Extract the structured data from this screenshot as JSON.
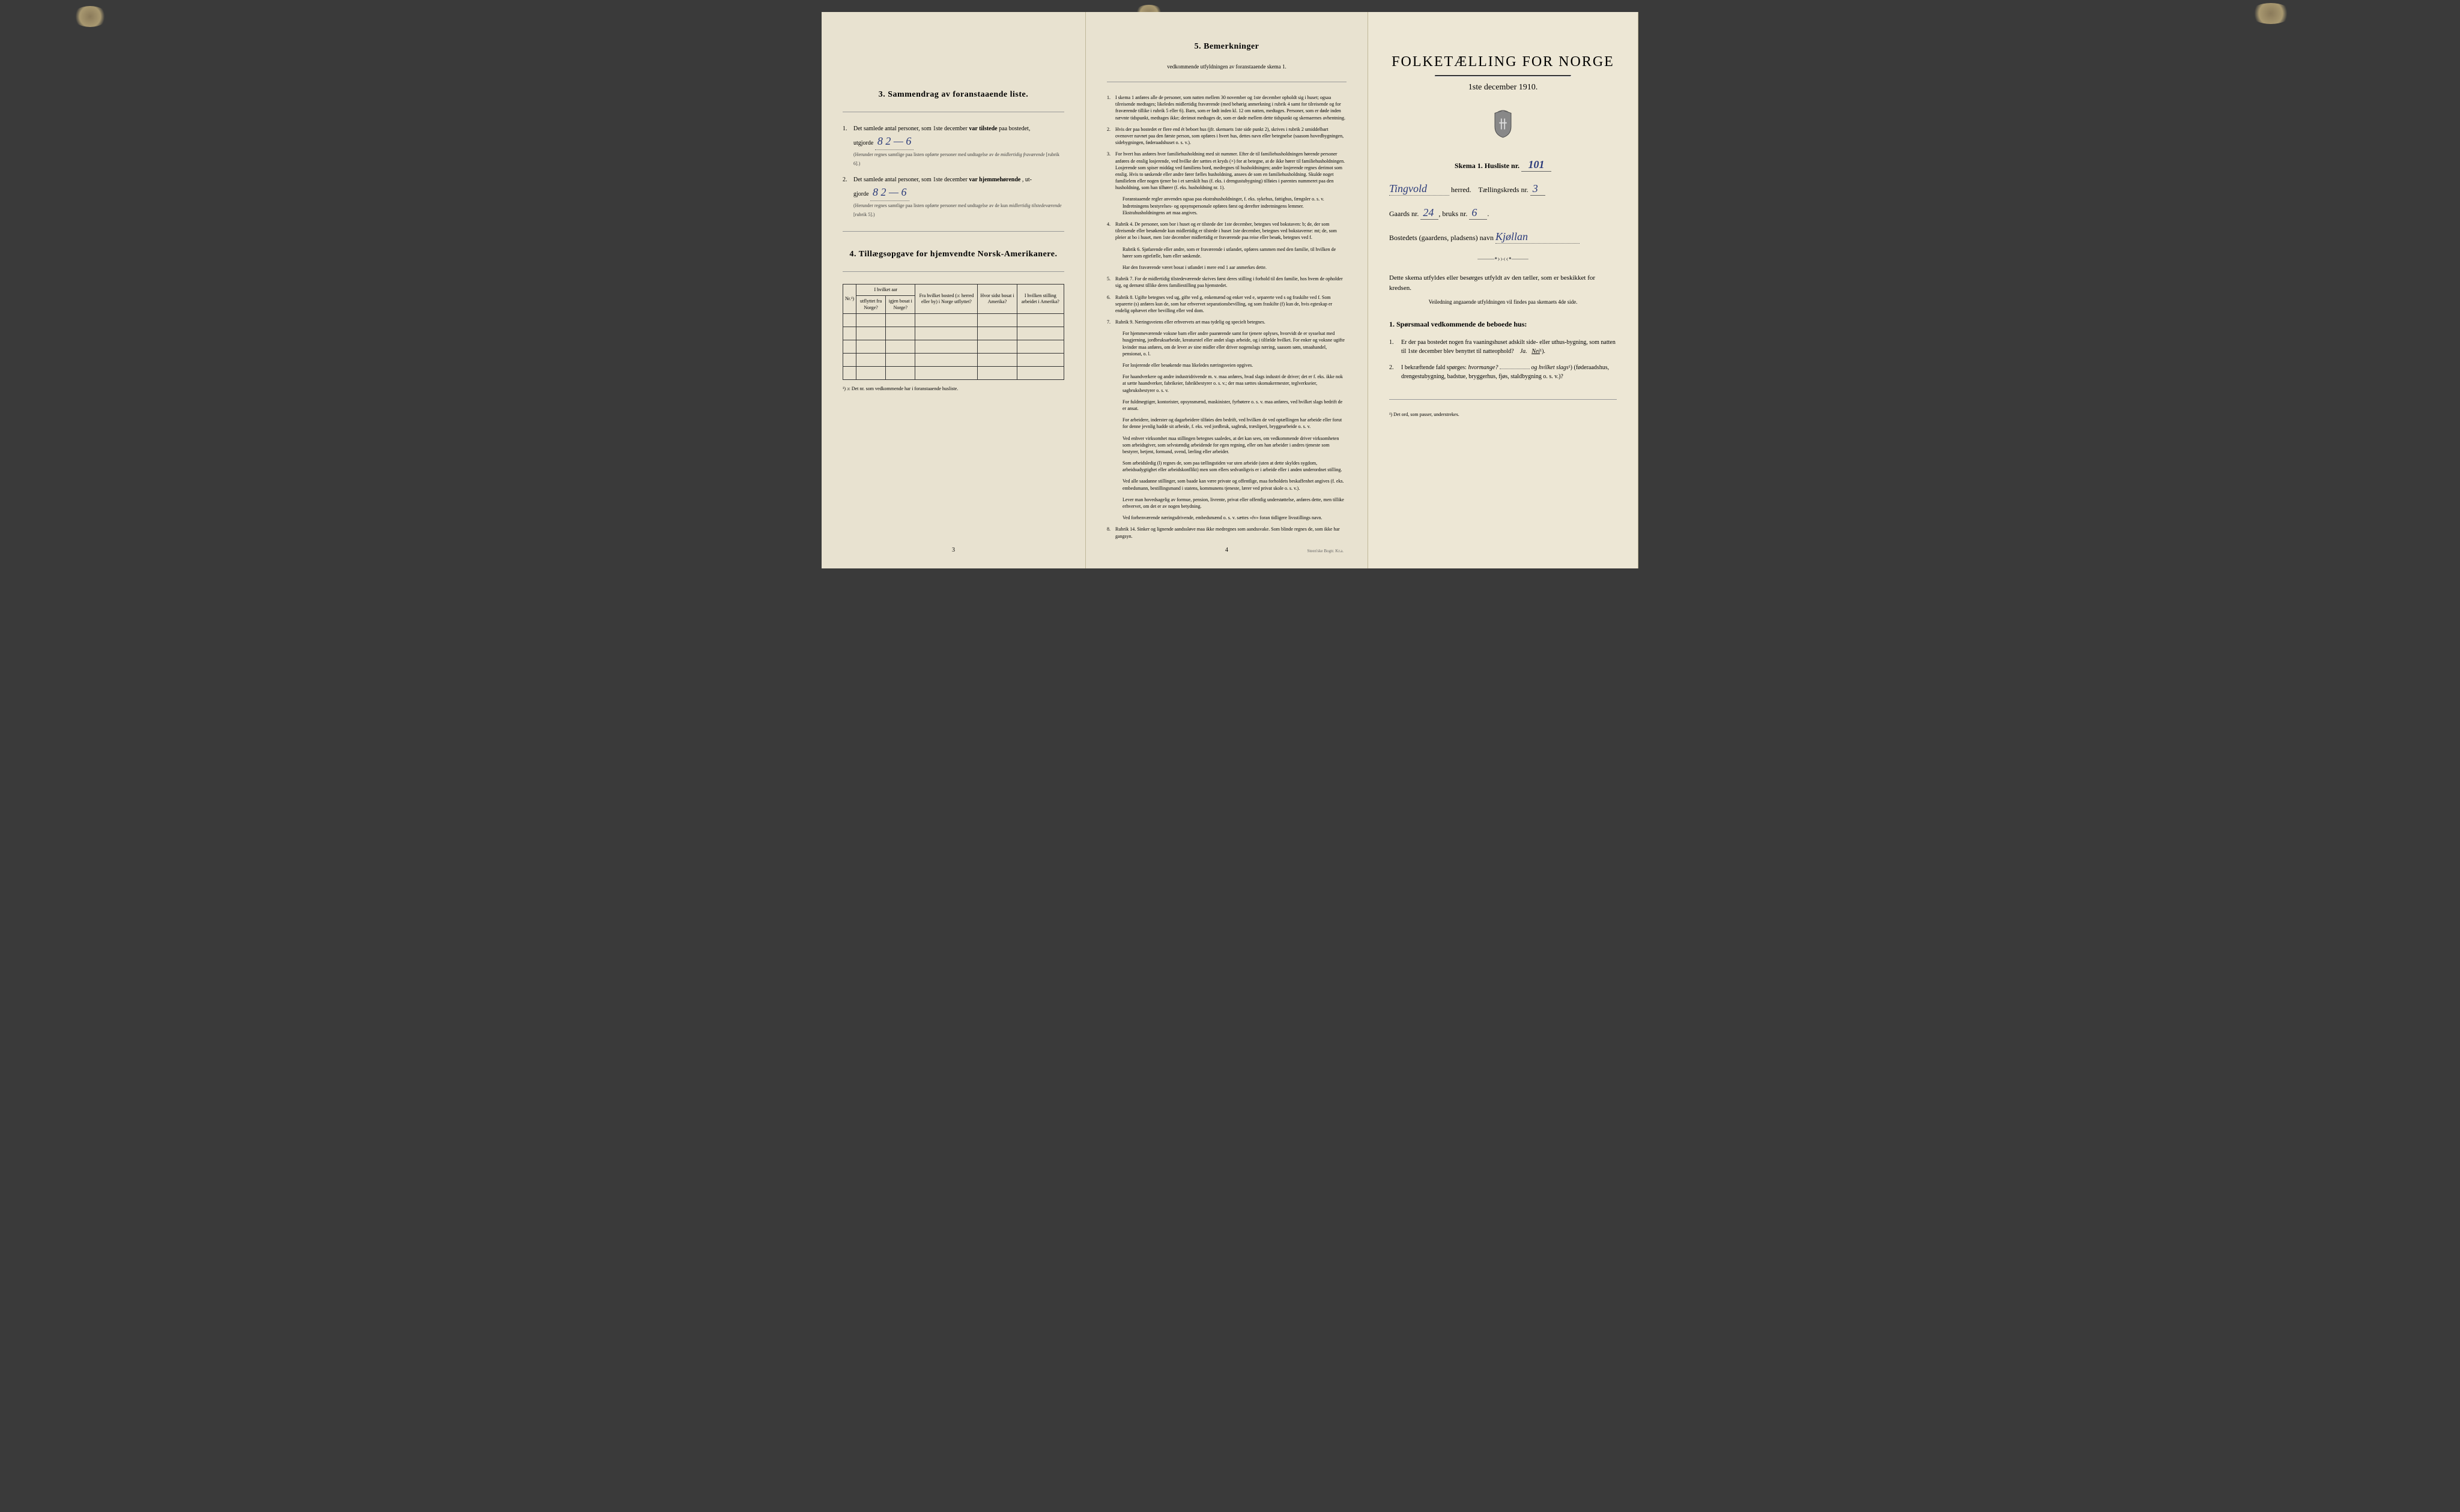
{
  "page_left": {
    "section3": {
      "title": "3. Sammendrag av foranstaaende liste.",
      "item1": {
        "num": "1.",
        "text_start": "Det samlede antal personer, som 1ste december",
        "text_bold": "var tilstede",
        "text_end": "paa bostedet,",
        "line2_start": "utgjorde",
        "handwritten": "8  2 — 6",
        "note": "(Herunder regnes samtlige paa listen opførte personer med undtagelse av de",
        "note_italic": "midlertidig fraværende",
        "note_end": "[rubrik 6].)"
      },
      "item2": {
        "num": "2.",
        "text_start": "Det samlede antal personer, som 1ste december",
        "text_bold": "var hjemmehørende",
        "text_end": ", ut-",
        "line2_start": "gjorde",
        "handwritten": "8  2 — 6",
        "note": "(Herunder regnes samtlige paa listen opførte personer med undtagelse av de kun",
        "note_italic": "midlertidig tilstedeværende",
        "note_end": "[rubrik 5].)"
      }
    },
    "section4": {
      "title": "4. Tillægsopgave for hjemvendte Norsk-Amerikanere.",
      "headers": {
        "col1": "Nr.¹)",
        "col2_top": "I hvilket aar",
        "col2a": "utflyttet fra Norge?",
        "col2b": "igjen bosat i Norge?",
        "col3": "Fra hvilket bosted (ɔ: herred eller by) i Norge utflyttet?",
        "col4": "Hvor sidst bosat i Amerika?",
        "col5": "I hvilken stilling arbeidet i Amerika?"
      },
      "footnote": "¹) ɔ: Det nr. som vedkommende har i foranstaaende husliste."
    },
    "page_num": "3"
  },
  "page_center": {
    "section5": {
      "title": "5. Bemerkninger",
      "subtitle": "vedkommende utfyldningen av foranstaaende skema 1."
    },
    "remarks": [
      {
        "num": "1.",
        "text": "I skema 1 anføres alle de personer, som natten mellem 30 november og 1ste december opholdt sig i huset; ogsaa tilreisende medtages; likeledes midlertidig fraværende (med behørig anmerkning i rubrik 4 samt for tilreisende og for fraværende tillike i rubrik 5 eller 6). Barn, som er født inden kl. 12 om natten, medtages. Personer, som er døde inden nævnte tidspunkt, medtages ikke; derimot medtages de, som er døde mellem dette tidspunkt og skemaernes avhentning."
      },
      {
        "num": "2.",
        "text": "Hvis der paa bostedet er flere end ét beboet hus (jfr. skemaets 1ste side punkt 2), skrives i rubrik 2 umiddelbart ovenover navnet paa den første person, som opføres i hvert hus, dettes navn eller betegnelse (saasom hovedbygningen, sidebygningen, føderaadshuset o. s. v.)."
      },
      {
        "num": "3.",
        "text": "For hvert hus anføres hver familiehusholdning med sit nummer. Efter de til familiehusholdningen hørende personer anføres de enslig losjerende, ved hvilke der sættes et kryds (×) for at betegne, at de ikke hører til familiehusholdningen. Losjerende som spiser middag ved familiens bord, medregnes til husholdningen; andre losjerende regnes derimot som enslig. Hvis to søskende eller andre fører fælles husholdning, ansees de som en familiehusholdning. Skulde noget familielem eller nogen tjener bo i et særskilt hus (f. eks. i drengustubygning) tilføies i parentes nummeret paa den husholdning, som han tilhører (f. eks. husholdning nr. 1)."
      },
      {
        "num": "",
        "text": "Foranstaaende regler anvendes ogsaa paa ekstrahusholdninger, f. eks. sykehus, fattighus, fængsler o. s. v. Indretningens bestyrelses- og opsynspersonale opføres først og derefter indretningens lemmer. Ekstrahusholdningens art maa angives."
      },
      {
        "num": "4.",
        "text": "Rubrik 4. De personer, som bor i huset og er tilstede der 1ste december, betegnes ved bokstaven: b; de, der som tilreisende eller besøkende kun midlertidig er tilstede i huset 1ste december, betegnes ved bokstaverne: mt; de, som pleier at bo i huset, men 1ste december midlertidig er fraværende paa reise eller besøk, betegnes ved f."
      },
      {
        "num": "",
        "text": "Rubrik 6. Sjøfarende eller andre, som er fraværende i utlandet, opføres sammen med den familie, til hvilken de hører som egtefælle, barn eller søskende."
      },
      {
        "num": "",
        "text": "Har den fraværende været bosat i utlandet i mere end 1 aar anmerkes dette."
      },
      {
        "num": "5.",
        "text": "Rubrik 7. For de midlertidig tilstedeværende skrives først deres stilling i forhold til den familie, hos hvem de opholder sig, og dernæst tillike deres familiestilling paa hjemstedet."
      },
      {
        "num": "6.",
        "text": "Rubrik 8. Ugifte betegnes ved ug, gifte ved g, enkemænd og enker ved e, separerte ved s og fraskilte ved f. Som separerte (s) anføres kun de, som har erhvervet separationsbevilling, og som fraskilte (f) kun de, hvis egteskap er endelig ophævet efter bevilling eller ved dom."
      },
      {
        "num": "7.",
        "text": "Rubrik 9. Næringsveiens eller erhvervets art maa tydelig og specielt betegnes."
      },
      {
        "num": "",
        "text": "For hjemmeværende voksne barn eller andre paarørende samt for tjenere oplyses, hvorvidt de er sysselsat med husgjerning, jordbruksarbeide, kreaturstel eller andet slags arbeide, og i tilfælde hvilket. For enker og voksne ugifte kvinder maa anføres, om de lever av sine midler eller driver nogenslags næring, saasom søm, smaahandel, pensionat, o. l."
      },
      {
        "num": "",
        "text": "For losjerende eller besøkende maa likeledes næringsveien opgives."
      },
      {
        "num": "",
        "text": "For haandverkere og andre industridrivende m. v. maa anføres, hvad slags industri de driver; det er f. eks. ikke nok at sætte haandverker, fabrikeier, fabrikbestyrer o. s. v.; der maa sættes skomakermester, teglverkseier, sagbruksbestyrer o. s. v."
      },
      {
        "num": "",
        "text": "For fuldmegtiger, kontorister, opsynsmænd, maskinister, fyrbøtere o. s. v. maa anføres, ved hvilket slags bedrift de er ansat."
      },
      {
        "num": "",
        "text": "For arbeidere, inderster og dagarbeidere tilføies den bedrift, ved hvilken de ved optællingen har arbeide eller forut for denne jevnlig hadde sit arbeide, f. eks. ved jordbruk, sagbruk, træsliperi, bryggearbeide o. s. v."
      },
      {
        "num": "",
        "text": "Ved enhver virksomhet maa stillingen betegnes saaledes, at det kan sees, om vedkommende driver virksomheten som arbeidsgiver, som selvstændig arbeidende for egen regning, eller om han arbeider i andres tjeneste som bestyrer, betjent, formand, svend, lærling eller arbeider."
      },
      {
        "num": "",
        "text": "Som arbeidsledig (l) regnes de, som paa tællingstiden var uten arbeide (uten at dette skyldes sygdom, arbeidsudygtighet eller arbeidskonflikt) men som ellers sedvanligvis er i arbeide eller i anden underordnet stilling."
      },
      {
        "num": "",
        "text": "Ved alle saadanne stillinger, som baade kan være private og offentlige, maa forholdets beskaffenhet angives (f. eks. embedsmann, bestillingsmand i statens, kommunens tjeneste, lærer ved privat skole o. s. v.)."
      },
      {
        "num": "",
        "text": "Lever man hovedsagelig av formue, pension, livrente, privat eller offentlig understøttelse, anføres dette, men tillike erhvervet, om det er av nogen betydning."
      },
      {
        "num": "",
        "text": "Ved forhenværende næringsdrivende, embedsmænd o. s. v. sættes «fv» foran tidligere livsstillings navn."
      },
      {
        "num": "8.",
        "text": "Rubrik 14. Sinker og lignende aandssløve maa ikke medregnes som aandssvake. Som blinde regnes de, som ikke har gangsyn."
      }
    ],
    "page_num": "4",
    "printer": "Steen'ske Bogtr. Kr.a."
  },
  "page_right": {
    "main_title": "FOLKETÆLLING FOR NORGE",
    "date": "1ste december 1910.",
    "form_label": "Skema 1. Husliste nr.",
    "form_value": "101",
    "herred_value": "Tingvold",
    "herred_label": "herred.",
    "tk_label": "Tællingskreds nr.",
    "tk_value": "3",
    "gaards_label": "Gaards nr.",
    "gaards_value": "24",
    "bruks_label": "bruks nr.",
    "bruks_value": "6",
    "bosted_label": "Bostedets (gaardens, pladsens) navn",
    "bosted_value": "Kjøllan",
    "instructions": "Dette skema utfyldes eller besørges utfyldt av den tæller, som er beskikket for kredsen.",
    "instructions_small": "Veiledning angaaende utfyldningen vil findes paa skemaets 4de side.",
    "q_section_title": "1. Spørsmaal vedkommende de beboede hus:",
    "q1": {
      "num": "1.",
      "text": "Er der paa bostedet nogen fra vaaningshuset adskilt side- eller uthus-bygning, som natten til 1ste december blev benyttet til natteophold?",
      "answer_ja": "Ja.",
      "answer_nei": "Nei",
      "sup": "¹)."
    },
    "q2": {
      "num": "2.",
      "text_start": "I bekræftende fald spørges:",
      "text_italic": "hvormange?",
      "text_mid": "og",
      "text_italic2": "hvilket slags",
      "sup": "¹)",
      "text_paren": "(føderaadshus, drengestubygning, badstue, bryggerhus, fjøs, staldbygning o. s. v.)?"
    },
    "footnote": "¹) Det ord, som passer, understrekes."
  }
}
